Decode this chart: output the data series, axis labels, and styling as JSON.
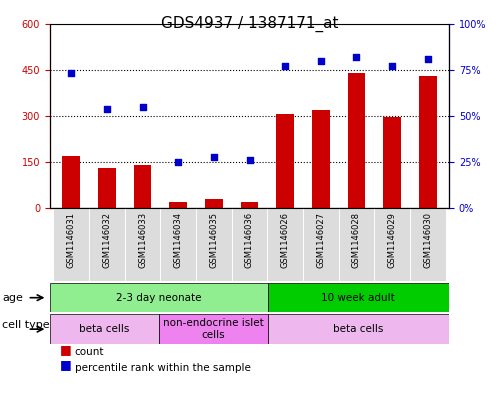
{
  "title": "GDS4937 / 1387171_at",
  "samples": [
    "GSM1146031",
    "GSM1146032",
    "GSM1146033",
    "GSM1146034",
    "GSM1146035",
    "GSM1146036",
    "GSM1146026",
    "GSM1146027",
    "GSM1146028",
    "GSM1146029",
    "GSM1146030"
  ],
  "counts": [
    170,
    130,
    140,
    20,
    30,
    20,
    305,
    320,
    440,
    295,
    430
  ],
  "percentiles": [
    73,
    54,
    55,
    25,
    28,
    26,
    77,
    80,
    82,
    77,
    81
  ],
  "left_ylim": [
    0,
    600
  ],
  "right_ylim": [
    0,
    100
  ],
  "left_yticks": [
    0,
    150,
    300,
    450,
    600
  ],
  "right_yticks": [
    0,
    25,
    50,
    75,
    100
  ],
  "left_yticklabels": [
    "0",
    "150",
    "300",
    "450",
    "600"
  ],
  "right_yticklabels": [
    "0%",
    "25%",
    "50%",
    "75%",
    "100%"
  ],
  "bar_color": "#CC0000",
  "dot_color": "#0000CC",
  "bg_color": "#FFFFFF",
  "plot_bg": "#FFFFFF",
  "age_groups": [
    {
      "label": "2-3 day neonate",
      "start": 0,
      "end": 6,
      "color": "#90EE90"
    },
    {
      "label": "10 week adult",
      "start": 6,
      "end": 11,
      "color": "#00CC00"
    }
  ],
  "cell_groups": [
    {
      "label": "beta cells",
      "start": 0,
      "end": 3,
      "color": "#EEB8EE"
    },
    {
      "label": "non-endocrine islet\ncells",
      "start": 3,
      "end": 6,
      "color": "#EE82EE"
    },
    {
      "label": "beta cells",
      "start": 6,
      "end": 11,
      "color": "#EEB8EE"
    }
  ],
  "legend_count_color": "#CC0000",
  "legend_dot_color": "#0000CC",
  "left_axis_color": "#CC0000",
  "right_axis_color": "#0000CC",
  "tick_label_fontsize": 7,
  "title_fontsize": 11,
  "bar_width": 0.5
}
